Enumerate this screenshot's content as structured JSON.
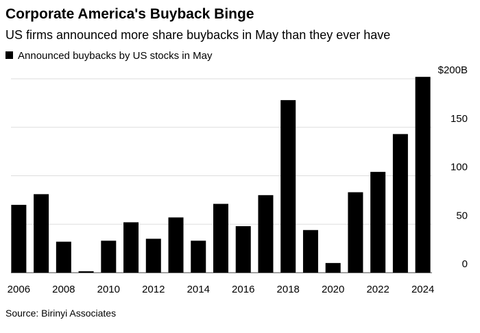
{
  "chart_data": {
    "type": "bar",
    "title": "Corporate America's Buyback Binge",
    "subtitle": "US firms announced more share buybacks in May than they ever have",
    "source": "Source: Birinyi Associates",
    "categories": [
      "2006",
      null,
      "2008",
      null,
      "2010",
      null,
      "2012",
      null,
      "2014",
      null,
      "2016",
      null,
      "2018",
      null,
      "2020",
      null,
      "2022",
      null,
      "2024"
    ],
    "series": [
      {
        "name": "Announced buybacks by US stocks in May",
        "color": "#000000",
        "values": [
          70,
          81,
          32,
          1.5,
          33,
          52,
          35,
          57,
          33,
          71,
          48,
          80,
          178,
          44,
          10,
          83,
          104,
          143,
          202
        ]
      }
    ],
    "ylim": [
      0,
      200
    ],
    "yticks": [
      0,
      50,
      100,
      150,
      {
        "value": 200,
        "label": "$200B"
      }
    ],
    "grid": true,
    "legend": "top-left"
  }
}
